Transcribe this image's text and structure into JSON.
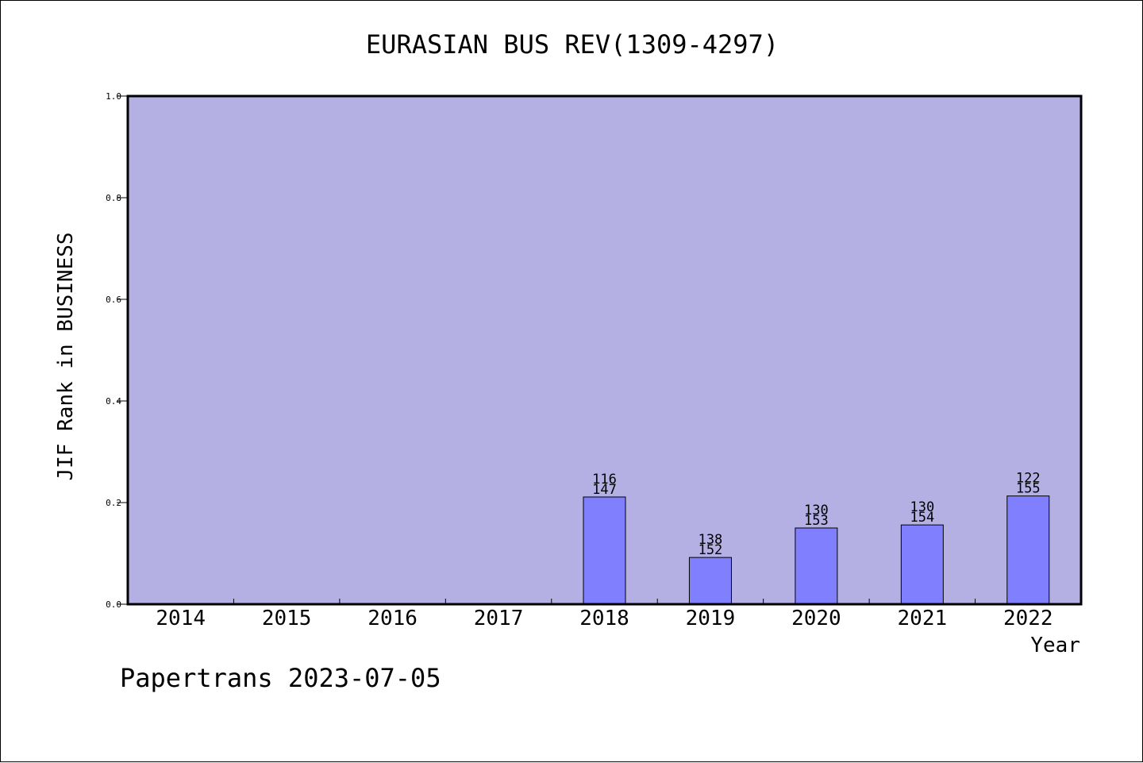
{
  "footer_text": "Papertrans 2023-07-05",
  "colors": {
    "plot_background": "#b5b0e3",
    "bar_fill": "#8080ff",
    "bar_stroke": "#000000",
    "axis": "#000000"
  },
  "chart_data": {
    "type": "bar",
    "title": "EURASIAN BUS REV(1309-4297)",
    "xlabel": "Year",
    "ylabel": "JIF Rank in BUSINESS",
    "ylim": [
      0,
      1.0
    ],
    "yticks": [
      "0.0",
      "0.2",
      "0.4",
      "0.6",
      "0.8",
      "1.0"
    ],
    "grid": false,
    "categories": [
      "2014",
      "2015",
      "2016",
      "2017",
      "2018",
      "2019",
      "2020",
      "2021",
      "2022"
    ],
    "values": [
      null,
      null,
      null,
      null,
      0.211,
      0.092,
      0.15,
      0.156,
      0.213
    ],
    "rank_labels": [
      null,
      null,
      null,
      null,
      "116",
      "138",
      "130",
      "130",
      "122"
    ],
    "total_labels": [
      null,
      null,
      null,
      null,
      "147",
      "152",
      "153",
      "154",
      "155"
    ]
  }
}
